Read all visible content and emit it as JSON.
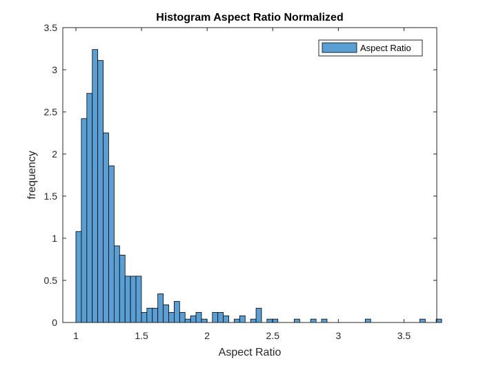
{
  "chart_data": {
    "type": "bar",
    "title": "Histogram Aspect Ratio Normalized",
    "xlabel": "Aspect Ratio",
    "ylabel": "frequency",
    "xlim": [
      0.9,
      3.75
    ],
    "ylim": [
      0,
      3.5
    ],
    "xticks": [
      1,
      1.5,
      2,
      2.5,
      3,
      3.5
    ],
    "xtick_labels": [
      "1",
      "1.5",
      "2",
      "2.5",
      "3",
      "3.5"
    ],
    "yticks": [
      0,
      0.5,
      1,
      1.5,
      2,
      2.5,
      3,
      3.5
    ],
    "ytick_labels": [
      "0",
      "0.5",
      "1",
      "1.5",
      "2",
      "2.5",
      "3",
      "3.5"
    ],
    "bin_start": 1.0,
    "bin_width": 0.0416,
    "values": [
      1.08,
      2.42,
      2.72,
      3.24,
      3.11,
      2.25,
      1.86,
      0.91,
      0.8,
      0.55,
      0.55,
      0.55,
      0.12,
      0.17,
      0.17,
      0.34,
      0.21,
      0.12,
      0.25,
      0.12,
      0.04,
      0.08,
      0.12,
      0.04,
      0,
      0.12,
      0.12,
      0.08,
      0,
      0.04,
      0.08,
      0,
      0.04,
      0.17,
      0,
      0.04,
      0.04,
      0,
      0,
      0,
      0.04,
      0,
      0,
      0.04,
      0,
      0.04,
      0,
      0,
      0,
      0,
      0,
      0,
      0,
      0.04,
      0,
      0,
      0,
      0,
      0,
      0,
      0,
      0,
      0,
      0.04,
      0,
      0,
      0.04
    ],
    "series": [
      {
        "name": "Aspect Ratio",
        "color": "#5a9fd4"
      }
    ],
    "grid": false,
    "legend": "top-right"
  }
}
